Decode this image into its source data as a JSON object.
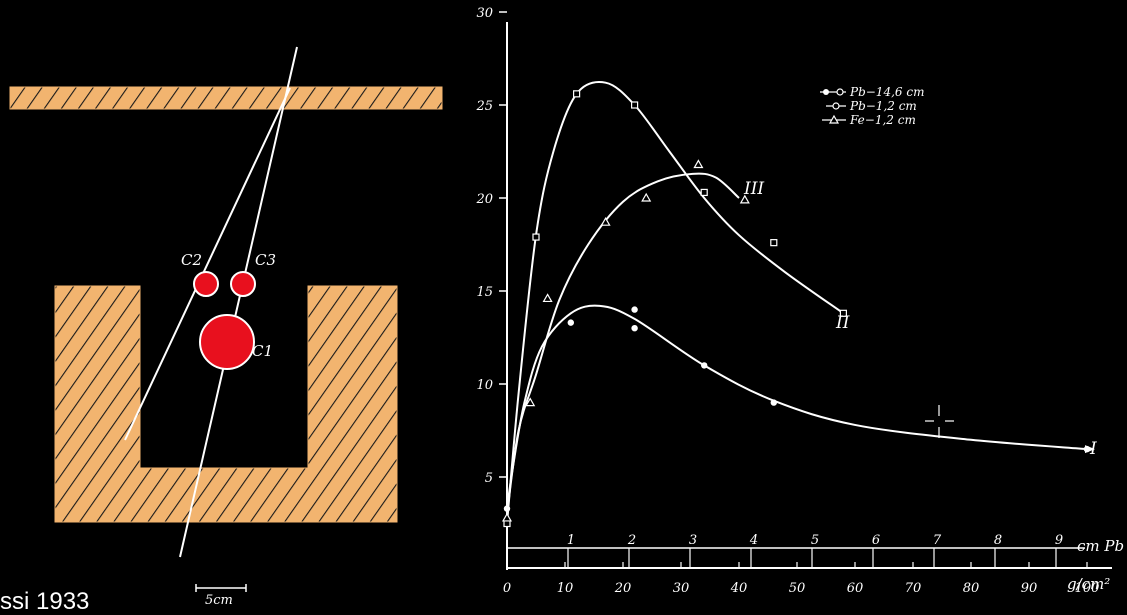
{
  "slide": {
    "caption": "ssi 1933"
  },
  "apparatus": {
    "counter_labels": [
      "C2",
      "C3",
      "C1"
    ],
    "scale_bar_label": "5cm",
    "colors": {
      "absorber": "#f2b46f",
      "hatch": "#1a1a1a",
      "counter": "#e8101e",
      "line": "#ffffff"
    }
  },
  "chart_data": {
    "type": "line",
    "y_axis": {
      "ylim": [
        0,
        30
      ],
      "ticks": [
        5,
        10,
        15,
        20,
        25,
        30
      ]
    },
    "x_axis_mass": {
      "unit_label": "g/cm²",
      "ticks": [
        0,
        10,
        20,
        30,
        40,
        50,
        60,
        70,
        80,
        90,
        100
      ]
    },
    "x_axis_pb": {
      "unit_label": "cm Pb",
      "ticks": [
        1,
        2,
        3,
        4,
        5,
        6,
        7,
        8,
        9
      ]
    },
    "legend": {
      "placement": "top-right",
      "entries": [
        "Pb−14,6 cm",
        "Pb−1,2 cm",
        "Fe−1,2 cm"
      ]
    },
    "series": [
      {
        "label": "I",
        "marker": "filled-circle",
        "x": [
          0,
          1,
          3,
          6,
          11,
          16,
          22,
          34,
          46,
          60,
          80,
          100
        ],
        "y": [
          3.3,
          5.5,
          9.0,
          12.0,
          13.8,
          14.2,
          13.5,
          11.0,
          9.1,
          7.8,
          7.0,
          6.5
        ],
        "points": [
          [
            0,
            3.3
          ],
          [
            11,
            13.3
          ],
          [
            22,
            14.0
          ],
          [
            22,
            13.0
          ],
          [
            34,
            11.0
          ],
          [
            46,
            9.0
          ],
          [
            100,
            6.5
          ]
        ]
      },
      {
        "label": "II",
        "marker": "open-square",
        "x": [
          0,
          2,
          5,
          8,
          12,
          17,
          22,
          28,
          34,
          40,
          48,
          58
        ],
        "y": [
          2.5,
          9.5,
          18.0,
          22.5,
          25.6,
          26.2,
          25.0,
          22.5,
          20.0,
          18.0,
          16.0,
          13.8
        ],
        "points": [
          [
            0,
            2.5
          ],
          [
            5,
            17.9
          ],
          [
            12,
            25.6
          ],
          [
            22,
            25.0
          ],
          [
            34,
            20.3
          ],
          [
            46,
            17.6
          ],
          [
            58,
            13.8
          ]
        ]
      },
      {
        "label": "III",
        "marker": "open-triangle",
        "x": [
          0,
          2,
          5,
          9,
          14,
          20,
          26,
          32,
          36,
          40
        ],
        "y": [
          3.0,
          7.5,
          10.5,
          14.5,
          17.5,
          19.8,
          20.9,
          21.3,
          21.1,
          20.0
        ],
        "points": [
          [
            0,
            2.8
          ],
          [
            4,
            9.0
          ],
          [
            7,
            14.6
          ],
          [
            17,
            18.7
          ],
          [
            24,
            20.0
          ],
          [
            33,
            21.8
          ],
          [
            41,
            19.9
          ]
        ]
      }
    ]
  }
}
